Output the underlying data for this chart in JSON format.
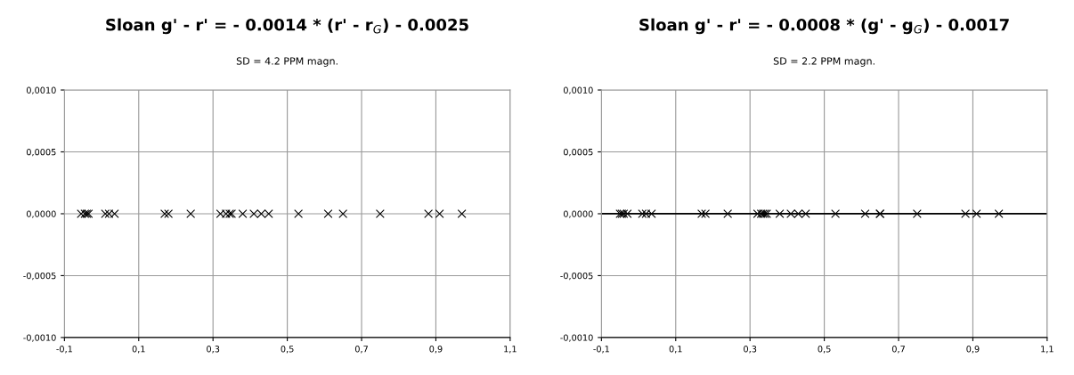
{
  "chart_data": [
    {
      "type": "scatter",
      "title": "Sloan g' - r' = - 0.0014 * (r' - r$_{G}$) - 0.0025",
      "subtitle": "SD = 4.2 PPM magn.",
      "marker": "cross",
      "grid": true,
      "x": [
        -0.055,
        -0.045,
        -0.04,
        -0.035,
        0.01,
        0.02,
        0.035,
        0.17,
        0.18,
        0.24,
        0.32,
        0.335,
        0.345,
        0.35,
        0.38,
        0.41,
        0.43,
        0.45,
        0.53,
        0.61,
        0.65,
        0.75,
        0.88,
        0.91,
        0.97
      ],
      "series": [
        {
          "color": "#000000",
          "values": [
            0,
            0,
            0,
            0,
            0,
            0,
            0,
            0,
            0,
            0,
            0,
            0,
            0,
            0,
            0,
            0,
            0,
            0,
            0,
            0,
            0,
            0,
            0,
            0,
            0
          ]
        }
      ],
      "xlim": [
        -0.1,
        1.1
      ],
      "xticks": [
        {
          "value": -0.1,
          "label": "-0,1"
        },
        {
          "value": 0.1,
          "label": "0,1"
        },
        {
          "value": 0.3,
          "label": "0,3"
        },
        {
          "value": 0.5,
          "label": "0,5"
        },
        {
          "value": 0.7,
          "label": "0,7"
        },
        {
          "value": 0.9,
          "label": "0,9"
        },
        {
          "value": 1.1,
          "label": "1,1"
        }
      ],
      "ylim": [
        -0.001,
        0.001
      ],
      "yticks": [
        {
          "value": -0.001,
          "label": "-0,0010"
        },
        {
          "value": -0.0005,
          "label": "-0,0005"
        },
        {
          "value": 0,
          "label": "0,0000"
        },
        {
          "value": 0.0005,
          "label": "0,0005"
        },
        {
          "value": 0.001,
          "label": "0,0010"
        }
      ]
    },
    {
      "type": "scatter",
      "title": "Sloan g' - r' = - 0.0008 * (g' - g$_{G}$) - 0.0017",
      "subtitle": "SD = 2.2 PPM magn.",
      "marker": "cross",
      "grid": true,
      "x": [
        -0.05,
        -0.045,
        -0.04,
        -0.03,
        0.01,
        0.02,
        0.035,
        0.17,
        0.18,
        0.24,
        0.32,
        0.33,
        0.335,
        0.34,
        0.345,
        0.38,
        0.41,
        0.43,
        0.45,
        0.53,
        0.61,
        0.65,
        0.65,
        0.75,
        0.88,
        0.91,
        0.97
      ],
      "series": [
        {
          "color": "#000000",
          "values": [
            0,
            0,
            0,
            0,
            0,
            0,
            0,
            0,
            0,
            0,
            0,
            0,
            0,
            0,
            0,
            0,
            0,
            0,
            0,
            0,
            0,
            0,
            0,
            0,
            0,
            0,
            0
          ]
        }
      ],
      "xlim": [
        -0.1,
        1.1
      ],
      "xticks": [
        {
          "value": -0.1,
          "label": "-0,1"
        },
        {
          "value": 0.1,
          "label": "0,1"
        },
        {
          "value": 0.3,
          "label": "0,3"
        },
        {
          "value": 0.5,
          "label": "0,5"
        },
        {
          "value": 0.7,
          "label": "0,7"
        },
        {
          "value": 0.9,
          "label": "0,9"
        },
        {
          "value": 1.1,
          "label": "1,1"
        }
      ],
      "ylim": [
        -0.001,
        0.001
      ],
      "yticks": [
        {
          "value": -0.001,
          "label": "-0,0010"
        },
        {
          "value": -0.0005,
          "label": "-0,0005"
        },
        {
          "value": 0,
          "label": "0,0000"
        },
        {
          "value": 0.0005,
          "label": "0,0005"
        },
        {
          "value": 0.001,
          "label": "0,0010"
        }
      ],
      "ref_lines": [
        {
          "axis": "y",
          "value": 0,
          "color": "#000000"
        }
      ]
    }
  ]
}
